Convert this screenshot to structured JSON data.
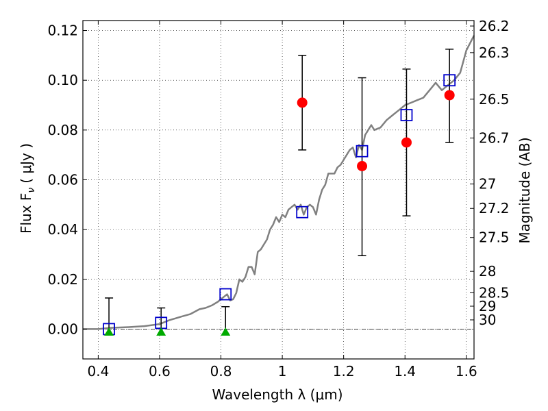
{
  "chart_data": {
    "type": "scatter",
    "title": "",
    "xlabel": "Wavelength  λ (μm)",
    "ylabel": "Flux  F",
    "ylabel_sub": "ν",
    "ylabel_unit": "( μJy )",
    "y2label": "Magnitude (AB)",
    "xlim": [
      0.35,
      1.625
    ],
    "ylim": [
      -0.012,
      0.124
    ],
    "grid": true,
    "x_ticks": [
      0.4,
      0.6,
      0.8,
      1.0,
      1.2,
      1.4,
      1.6
    ],
    "x_tick_labels": [
      "0.4",
      "0.6",
      "0.8",
      "1",
      "1.2",
      "1.4",
      "1.6"
    ],
    "y_ticks": [
      0.0,
      0.02,
      0.04,
      0.06,
      0.08,
      0.1,
      0.12
    ],
    "y_tick_labels": [
      "0.00",
      "0.02",
      "0.04",
      "0.06",
      "0.08",
      "0.10",
      "0.12"
    ],
    "y2_ticks": [
      {
        "label": "26.2",
        "flux": 0.1218
      },
      {
        "label": "26.3",
        "flux": 0.1111
      },
      {
        "label": "26.5",
        "flux": 0.0924
      },
      {
        "label": "26.7",
        "flux": 0.0768
      },
      {
        "label": "27",
        "flux": 0.0583
      },
      {
        "label": "27.2",
        "flux": 0.0485
      },
      {
        "label": "27.5",
        "flux": 0.0368
      },
      {
        "label": "28",
        "flux": 0.0232
      },
      {
        "label": "28.5",
        "flux": 0.0146
      },
      {
        "label": "29",
        "flux": 0.0092
      },
      {
        "label": "30",
        "flux": 0.0037
      }
    ],
    "model_sed": {
      "color": "#808080",
      "x": [
        0.35,
        0.4,
        0.44,
        0.5,
        0.55,
        0.6,
        0.63,
        0.67,
        0.7,
        0.73,
        0.75,
        0.77,
        0.79,
        0.8,
        0.81,
        0.82,
        0.83,
        0.84,
        0.85,
        0.86,
        0.87,
        0.88,
        0.89,
        0.9,
        0.91,
        0.92,
        0.93,
        0.94,
        0.95,
        0.96,
        0.97,
        0.98,
        0.99,
        1.0,
        1.01,
        1.02,
        1.03,
        1.04,
        1.05,
        1.06,
        1.07,
        1.08,
        1.09,
        1.1,
        1.11,
        1.12,
        1.13,
        1.14,
        1.15,
        1.16,
        1.17,
        1.18,
        1.19,
        1.2,
        1.21,
        1.22,
        1.23,
        1.24,
        1.25,
        1.26,
        1.27,
        1.28,
        1.29,
        1.3,
        1.32,
        1.34,
        1.36,
        1.38,
        1.4,
        1.42,
        1.44,
        1.46,
        1.48,
        1.5,
        1.52,
        1.54,
        1.56,
        1.58,
        1.6,
        1.625
      ],
      "y": [
        0.0,
        0.0,
        0.0005,
        0.0008,
        0.0012,
        0.002,
        0.0035,
        0.005,
        0.006,
        0.008,
        0.0085,
        0.0095,
        0.011,
        0.012,
        0.013,
        0.014,
        0.0115,
        0.012,
        0.0145,
        0.02,
        0.019,
        0.021,
        0.025,
        0.025,
        0.022,
        0.031,
        0.032,
        0.034,
        0.036,
        0.04,
        0.042,
        0.045,
        0.043,
        0.046,
        0.045,
        0.048,
        0.049,
        0.05,
        0.048,
        0.05,
        0.046,
        0.049,
        0.05,
        0.049,
        0.046,
        0.052,
        0.056,
        0.058,
        0.0625,
        0.0625,
        0.0625,
        0.065,
        0.066,
        0.068,
        0.07,
        0.072,
        0.073,
        0.069,
        0.074,
        0.072,
        0.078,
        0.08,
        0.082,
        0.08,
        0.081,
        0.084,
        0.086,
        0.088,
        0.09,
        0.091,
        0.092,
        0.093,
        0.096,
        0.099,
        0.096,
        0.098,
        0.1,
        0.103,
        0.112,
        0.118
      ]
    },
    "observed": {
      "color": "#ff0000",
      "points": [
        {
          "x": 1.065,
          "y": 0.091,
          "yerr_low": 0.072,
          "yerr_high": 0.11
        },
        {
          "x": 1.26,
          "y": 0.0655,
          "yerr_low": 0.0295,
          "yerr_high": 0.101
        },
        {
          "x": 1.405,
          "y": 0.075,
          "yerr_low": 0.0455,
          "yerr_high": 0.1045
        },
        {
          "x": 1.545,
          "y": 0.094,
          "yerr_low": 0.075,
          "yerr_high": 0.1125
        }
      ]
    },
    "upper_limits": {
      "color": "#00aa00",
      "points": [
        {
          "x": 0.435,
          "y": -0.001,
          "yerr_high": 0.0125
        },
        {
          "x": 0.605,
          "y": -0.001,
          "yerr_high": 0.0085
        },
        {
          "x": 0.815,
          "y": -0.001,
          "yerr_high": 0.009
        }
      ]
    },
    "model_photometry": {
      "color": "#0000cc",
      "points": [
        {
          "x": 0.435,
          "y": 0.0
        },
        {
          "x": 0.605,
          "y": 0.0025
        },
        {
          "x": 0.815,
          "y": 0.014
        },
        {
          "x": 1.065,
          "y": 0.047
        },
        {
          "x": 1.26,
          "y": 0.0715
        },
        {
          "x": 1.405,
          "y": 0.086
        },
        {
          "x": 1.545,
          "y": 0.1
        }
      ]
    }
  }
}
